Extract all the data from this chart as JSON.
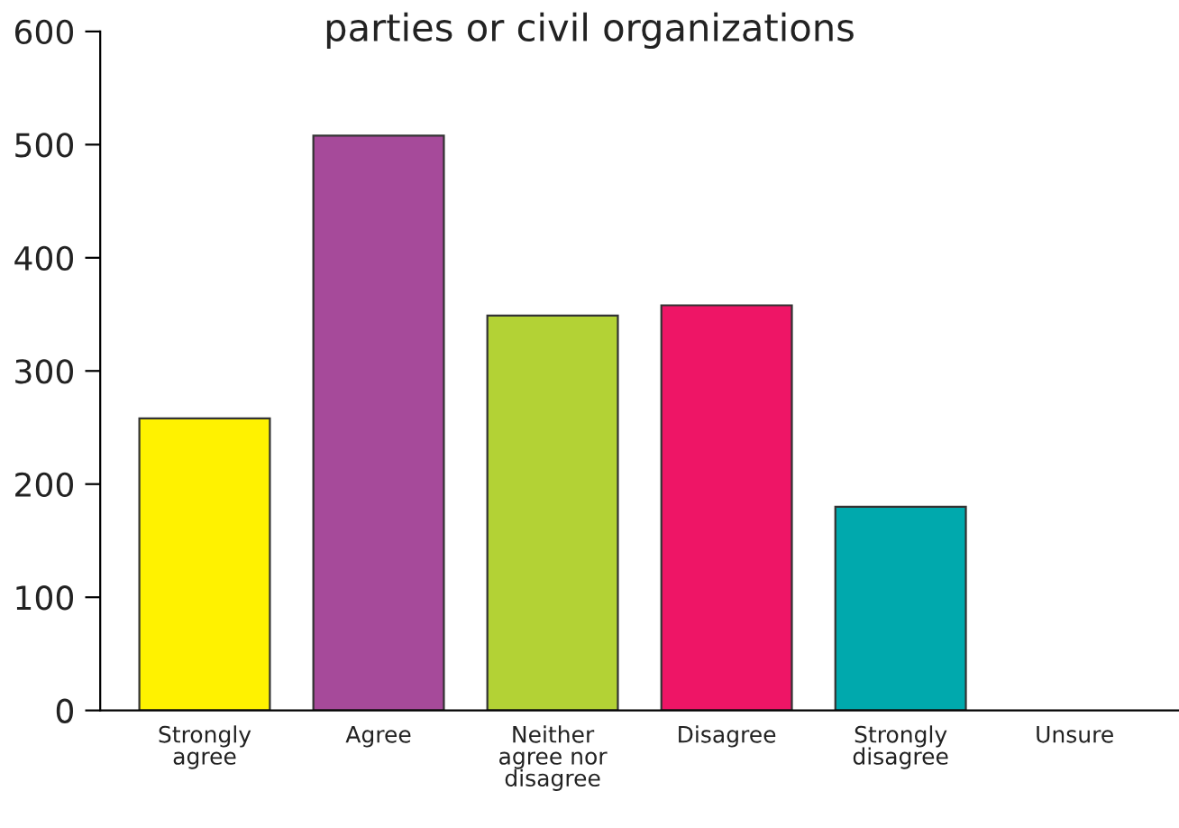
{
  "chart_data": {
    "type": "bar",
    "title": "parties or civil organizations",
    "categories": [
      "Strongly\nagree",
      "Agree",
      "Neither\nagree nor\ndisagree",
      "Disagree",
      "Strongly\ndisagree",
      "Unsure"
    ],
    "values": [
      258,
      508,
      349,
      358,
      180,
      0
    ],
    "colors": [
      "#fff200",
      "#a64a9a",
      "#b3d235",
      "#ee1566",
      "#00a9ad",
      "#ffffff"
    ],
    "ylim": [
      0,
      600
    ],
    "yticks": [
      0,
      100,
      200,
      300,
      400,
      500,
      600
    ],
    "grid": false
  }
}
